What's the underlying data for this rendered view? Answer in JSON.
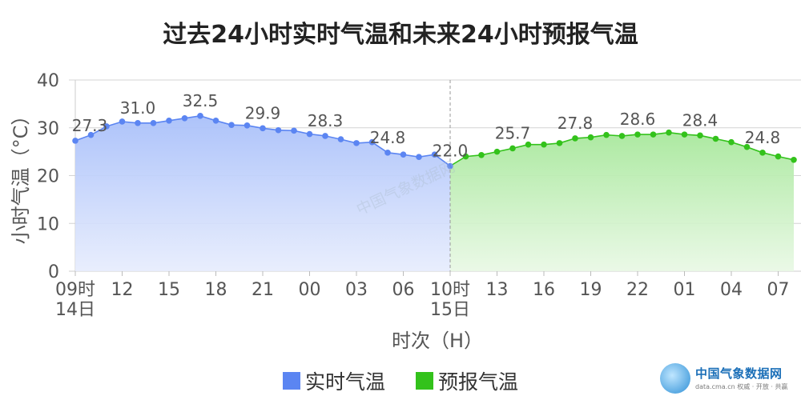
{
  "chart_data": {
    "type": "area",
    "title": "过去24小时实时气温和未来24小时预报气温",
    "xlabel": "时次（H）",
    "ylabel": "小时气温（°C）",
    "ylim": [
      0,
      40
    ],
    "yticks": [
      "0",
      "10",
      "20",
      "30",
      "40"
    ],
    "grid": true,
    "legend_position": "bottom-center",
    "x_tick_labels": [
      {
        "hour_index": 0,
        "label": "09时",
        "sub": "14日"
      },
      {
        "hour_index": 3,
        "label": "12"
      },
      {
        "hour_index": 6,
        "label": "15"
      },
      {
        "hour_index": 9,
        "label": "18"
      },
      {
        "hour_index": 12,
        "label": "21"
      },
      {
        "hour_index": 15,
        "label": "00"
      },
      {
        "hour_index": 18,
        "label": "03"
      },
      {
        "hour_index": 21,
        "label": "06"
      },
      {
        "hour_index": 24,
        "label": "10时",
        "sub": "15日"
      },
      {
        "hour_index": 27,
        "label": "13"
      },
      {
        "hour_index": 30,
        "label": "16"
      },
      {
        "hour_index": 33,
        "label": "19"
      },
      {
        "hour_index": 36,
        "label": "22"
      },
      {
        "hour_index": 39,
        "label": "01"
      },
      {
        "hour_index": 42,
        "label": "04"
      },
      {
        "hour_index": 45,
        "label": "07"
      }
    ],
    "series": [
      {
        "name": "实时气温",
        "color": "#5b85f2",
        "x_start": 0,
        "values": [
          27.3,
          28.5,
          30.3,
          31.3,
          31.0,
          31.0,
          31.5,
          32.0,
          32.5,
          31.5,
          30.6,
          30.5,
          29.9,
          29.5,
          29.4,
          28.7,
          28.3,
          27.6,
          26.8,
          27.0,
          24.8,
          24.4,
          23.9,
          24.4,
          22.0
        ],
        "labels": [
          {
            "i": 0,
            "text": "27.3"
          },
          {
            "i": 4,
            "text": "31.0"
          },
          {
            "i": 8,
            "text": "32.5"
          },
          {
            "i": 12,
            "text": "29.9"
          },
          {
            "i": 16,
            "text": "28.3"
          },
          {
            "i": 20,
            "text": "24.8"
          },
          {
            "i": 24,
            "text": "22.0"
          }
        ]
      },
      {
        "name": "预报气温",
        "color": "#33c21b",
        "x_start": 24,
        "values": [
          22.0,
          24.0,
          24.3,
          25.0,
          25.7,
          26.5,
          26.5,
          26.8,
          27.8,
          28.0,
          28.5,
          28.3,
          28.6,
          28.6,
          29.0,
          28.6,
          28.4,
          27.7,
          27.0,
          26.0,
          24.8,
          24.0,
          23.3
        ],
        "labels": [
          {
            "i": 4,
            "text": "25.7"
          },
          {
            "i": 8,
            "text": "27.8"
          },
          {
            "i": 12,
            "text": "28.6"
          },
          {
            "i": 16,
            "text": "28.4"
          },
          {
            "i": 20,
            "text": "24.8"
          }
        ]
      }
    ]
  },
  "watermark": {
    "name": "中国气象数据网",
    "domain": "data.cma.cn",
    "tagline": "权威 · 开放 · 共赢"
  }
}
